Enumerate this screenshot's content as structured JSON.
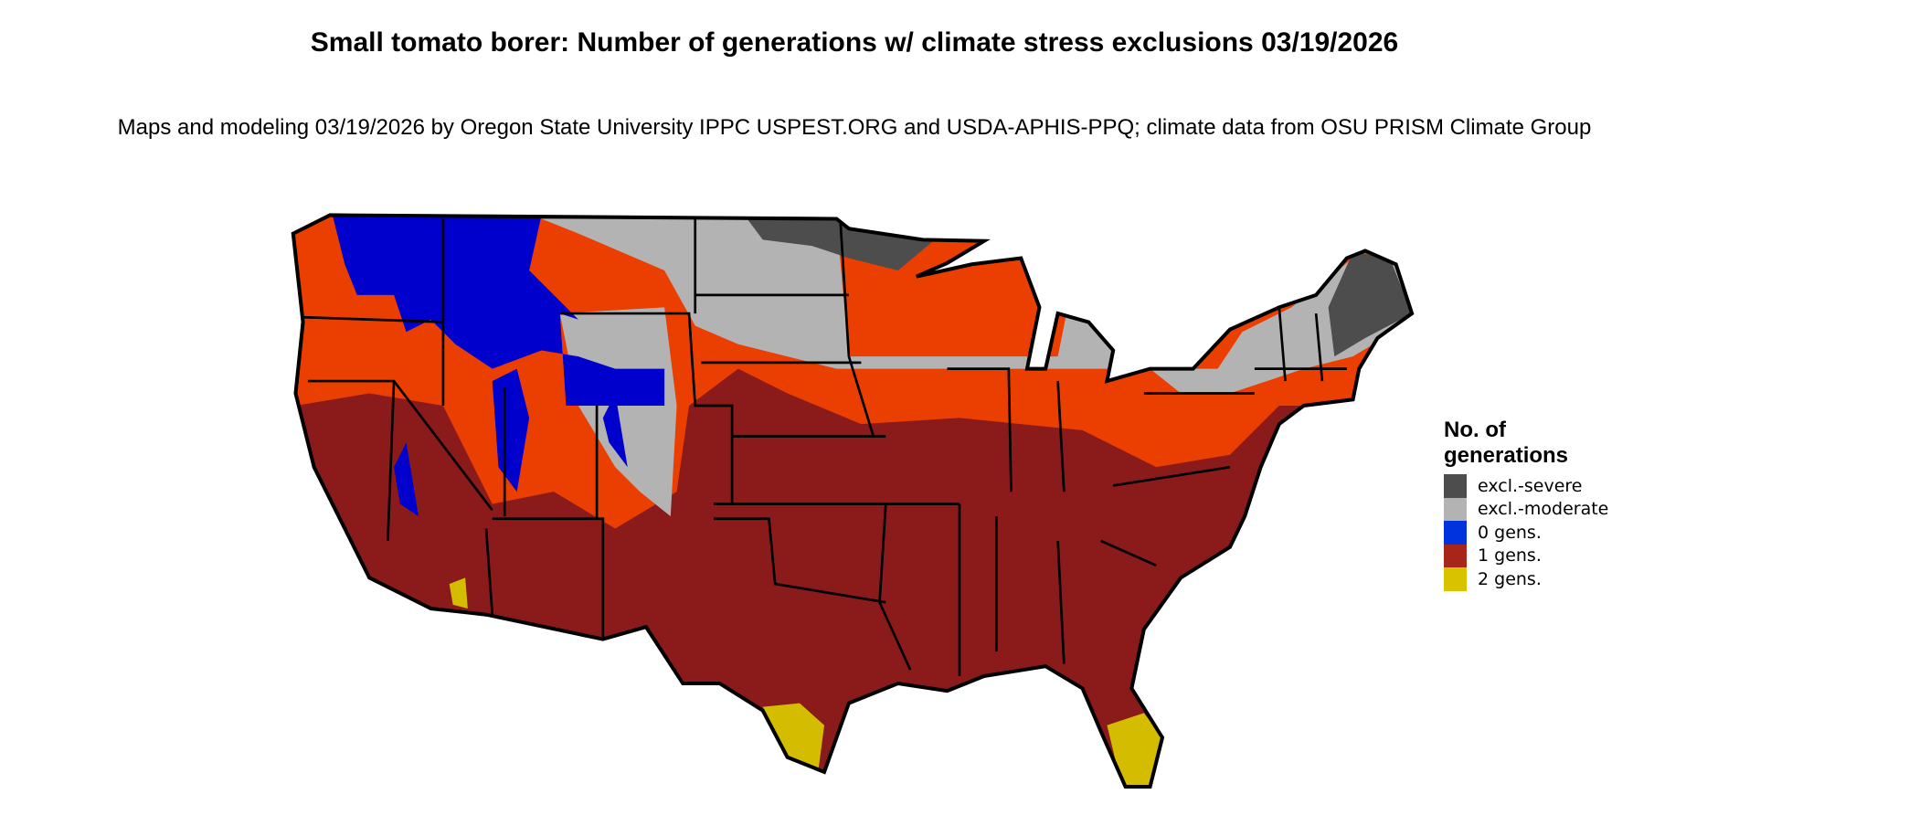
{
  "title": "Small tomato borer: Number of generations w/ climate stress exclusions 03/19/2026",
  "subtitle": "Maps and modeling 03/19/2026 by Oregon State University IPPC USPEST.ORG and USDA-APHIS-PPQ; climate data from OSU PRISM Climate Group",
  "map_colors": {
    "excl_severe": "#4d4d4d",
    "excl_moderate": "#b3b3b3",
    "gens_0": "#0000cc",
    "gens_1_north": "#ea3f00",
    "gens_1_south": "#8b1a1a",
    "gens_2": "#d4bc00",
    "state_border": "#000000"
  },
  "legend": {
    "title": "No. of generations",
    "items": [
      {
        "label": "excl.-severe",
        "color": "#4d4d4d"
      },
      {
        "label": "excl.-moderate",
        "color": "#b3b3b3"
      },
      {
        "label": "0 gens.",
        "color": "#0033dd"
      },
      {
        "label": "1 gens.",
        "color": "#a8251a"
      },
      {
        "label": "2 gens.",
        "color": "#d9c300"
      }
    ]
  }
}
